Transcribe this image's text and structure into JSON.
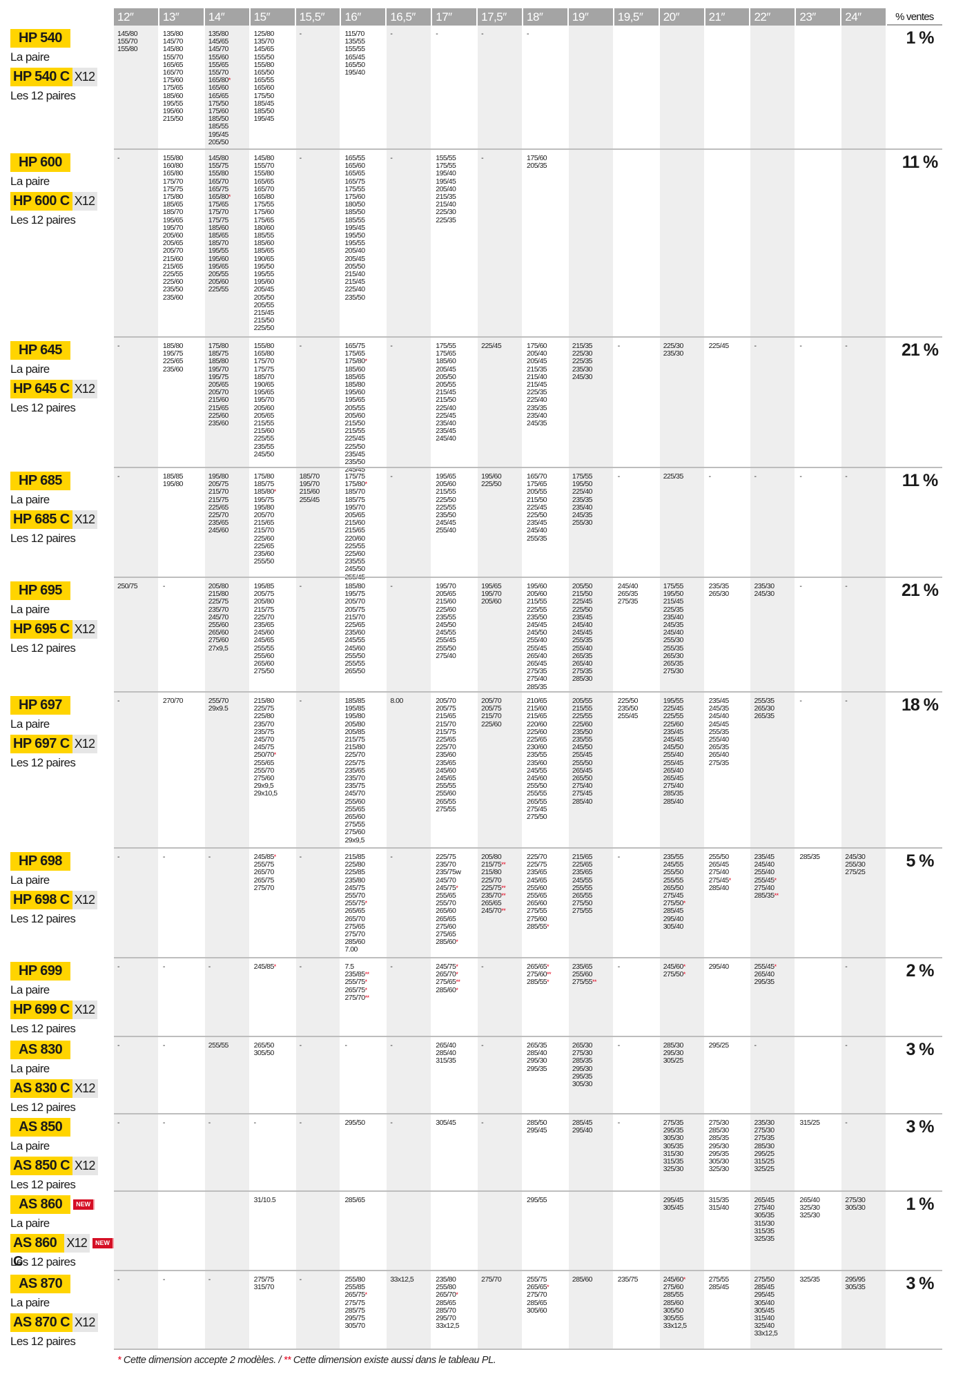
{
  "columns": [
    "12″",
    "13″",
    "14″",
    "15″",
    "15,5″",
    "16″",
    "16,5″",
    "17″",
    "17,5″",
    "18″",
    "19″",
    "19,5″",
    "20″",
    "21″",
    "22″",
    "23″",
    "24″"
  ],
  "pct_header": "% ventes",
  "colors": {
    "model_bg": "#ffd400",
    "header_bg": "#a4a4a4",
    "alt_col": "#eeeeee",
    "star": "#e3001b",
    "new_badge": "#d50f25"
  },
  "rows": [
    {
      "model": "HP 540",
      "pair": "La paire",
      "model_c": "HP 540 C",
      "x12": "X12",
      "dozen": "Les 12 paires",
      "pct": "1 %",
      "new": "",
      "cells": [
        "145/80 155/70 155/80",
        "135/80 145/70 145/80 155/70 165/65 165/70 175/60 175/65 185/60 195/55 195/60 215/50",
        "135/80 145/65 145/70 155/60 155/65 155/70 165/80* 165/60 165/65 175/50 175/60 185/50 185/55 195/45 205/50",
        "125/80 135/70 145/65 155/50 155/80 165/50 165/55 165/60 175/50 185/45 185/50 195/45",
        "-",
        "115/70 135/55 155/55 165/45 165/50 195/40",
        "-",
        "-",
        "-",
        "-",
        "",
        "",
        "",
        "",
        "",
        "",
        ""
      ]
    },
    {
      "model": "HP 600",
      "pair": "La paire",
      "model_c": "HP 600 C",
      "x12": "X12",
      "dozen": "Les 12 paires",
      "pct": "11 %",
      "new": "",
      "cells": [
        "-",
        "155/80 160/80 165/80 175/70 175/75 175/80 185/65 185/70 195/65 195/70 205/60 205/65 205/70 215/60 215/65 225/55 225/60 235/50 235/60",
        "145/80 155/75 155/80 165/70 165/75 165/80* 175/65 175/70 175/75 185/60 185/65 185/70 195/55 195/60 195/65 205/55 205/60 225/55",
        "145/80 155/70 155/80 165/65 165/70 165/80 175/55 175/60 175/65 180/60 185/55 185/60 185/65 190/65 195/50 195/55 195/60 205/45 205/50 205/55 215/45 215/50 225/50",
        "-",
        "165/55 165/60 165/65 165/75 175/55 175/60 180/50 185/50 185/55 195/45 195/50 195/55 205/40 205/45 205/50 215/40 215/45 225/40 235/50",
        "-",
        "155/55 175/55 195/40 195/45 205/40 215/35 215/40 225/30 225/35",
        "-",
        "175/60 205/35",
        "",
        "",
        "",
        "",
        "",
        "",
        ""
      ]
    },
    {
      "model": "HP 645",
      "pair": "La paire",
      "model_c": "HP 645 C",
      "x12": "X12",
      "dozen": "Les 12 paires",
      "pct": "21 %",
      "new": "",
      "cells": [
        "-",
        "185/80 195/75 225/65 235/60",
        "175/80 185/75 185/80 195/70 195/75 205/65 205/70 215/60 215/65 225/60 235/60",
        "155/80 165/80 175/70 175/75 185/70 190/65 195/65 195/70 205/60 205/65 215/55 215/60 225/55 235/55 245/50",
        "-",
        "165/75 175/65 175/80* 185/60 185/65 185/80 195/60 195/65 205/55 205/60 215/50 215/55 225/45 225/50 235/45 235/50 245/45",
        "-",
        "175/55 175/65 185/60 205/45 205/50 205/55 215/45 215/50 225/40 225/45 235/40 235/45 245/40",
        "225/45",
        "175/60 205/40 205/45 215/35 215/40 215/45 225/35 225/40 235/35 235/40 245/35",
        "215/35 225/30 225/35 235/30 245/30",
        "-",
        "225/30 235/30",
        "225/45",
        "-",
        "-",
        "-"
      ]
    },
    {
      "model": "HP 685",
      "pair": "La paire",
      "model_c": "HP 685 C",
      "x12": "X12",
      "dozen": "Les 12 paires",
      "pct": "11 %",
      "new": "",
      "cells": [
        "-",
        "185/85 195/80",
        "195/80 205/75 215/70 215/75 225/65 225/70 235/65 245/60",
        "175/80 185/75 185/80* 195/75 195/80 205/70 215/65 215/70 225/60 225/65 235/60 255/50",
        "185/70 195/70 215/60 255/45",
        "175/75 175/80* 185/70 185/75 195/70 205/65 215/60 215/65 220/60 225/55 225/60 235/55 245/50 255/45",
        "-",
        "195/65 205/60 215/55 225/50 225/55 235/50 245/45 255/40",
        "195/60 225/50",
        "165/70 175/65 205/55 215/50 225/45 225/50 235/45 245/40 255/35",
        "175/55 195/50 225/40 235/35 235/40 245/35 255/30",
        "-",
        "225/35",
        "-",
        "-",
        "-",
        "-"
      ]
    },
    {
      "model": "HP 695",
      "pair": "La paire",
      "model_c": "HP 695 C",
      "x12": "X12",
      "dozen": "Les 12 paires",
      "pct": "21 %",
      "new": "",
      "cells": [
        "250/75",
        "-",
        "205/80 215/80 225/75 235/70 245/70 255/60 265/60 275/60 27x9,5",
        "195/85 205/75 205/80 215/75 225/70 235/65 245/60 245/65 255/55 255/60 265/60 275/50",
        "-",
        "185/80 195/75 205/70 205/75 215/70 225/65 235/60 245/55 245/60 255/50 255/55 265/50",
        "-",
        "195/70 205/65 215/60 225/60 235/55 245/50 245/55 255/45 255/50 275/40",
        "195/65 195/70 205/60",
        "195/60 205/60 215/55 225/55 235/50 245/45 245/50 255/40 255/45 265/40 265/45 275/35 275/40 285/35",
        "205/50 215/50 225/45 225/50 235/45 245/40 245/45 255/35 255/40 265/35 265/40 275/35 285/30",
        "245/40 265/35 275/35",
        "175/55 195/50 215/45 225/35 235/40 245/35 245/40 255/30 255/35 265/30 265/35 275/30",
        "235/35 265/30",
        "235/30 245/30",
        "-",
        "-"
      ]
    },
    {
      "model": "HP 697",
      "pair": "La paire",
      "model_c": "HP 697 C",
      "x12": "X12",
      "dozen": "Les 12 paires",
      "pct": "18 %",
      "new": "",
      "cells": [
        "-",
        "270/70",
        "255/70 29x9.5",
        "215/80 225/75 225/80 235/70 235/75 245/70 245/75 250/70* 255/65 255/70 275/60 29x9,5 29x10,5",
        "-",
        "185/85 195/85 195/80 205/80 205/85 215/75 215/80 225/70 225/75 235/65 235/70 235/75 245/70 255/60 255/65 265/60 275/55 275/60 29x9,5",
        "8.00",
        "205/70 205/75 215/65 215/70 215/75 225/65 225/70 235/60 235/65 245/60 245/65 255/55 255/60 265/55 275/55",
        "205/70 205/75 215/70 225/60",
        "210/65 215/60 215/65 220/60 225/60 225/65 230/60 235/55 235/60 245/55 245/60 255/50 255/55 265/55 275/45 275/50",
        "205/55 215/55 225/55 225/60 235/50 235/55 245/50 255/45 255/50 265/45 265/50 275/40 275/45 285/40",
        "225/50 235/50 255/45",
        "195/55 225/45 225/55 225/60 235/45 245/45 245/50 255/40 255/45 265/40 265/45 275/40 285/35 285/40",
        "235/45 245/35 245/40 245/45 255/35 255/40 265/35 265/40 275/35",
        "255/35 265/30 265/35",
        "-",
        "-"
      ]
    },
    {
      "model": "HP 698",
      "pair": "La paire",
      "model_c": "HP 698 C",
      "x12": "X12",
      "dozen": "Les 12 paires",
      "pct": "5 %",
      "new": "",
      "cells": [
        "-",
        "-",
        "-",
        "245/85* 255/75 265/70 265/75 275/70",
        "-",
        "215/85 225/80 225/85 235/80 245/75 255/70 255/75* 265/65 265/70 275/65 275/70 285/60 7.00",
        "-",
        "225/75 235/70 235/75w 245/70 245/75* 255/65 255/70 265/60 265/65 275/60 275/65 285/60*",
        "205/80 215/75** 215/80 225/70 225/75** 235/70** 265/65 245/70**",
        "225/70 225/75 235/65 245/65 255/60 255/65 265/60 275/55 275/60 285/55*",
        "215/65 225/65 235/65 245/55 255/55 265/55 275/50 275/55",
        "-",
        "235/55 245/55 255/50 255/55 265/50 275/45 275/50* 285/45 295/40 305/40",
        "255/50 265/45 275/40 275/45* 285/40",
        "235/45 245/40 255/40 255/45* 275/40 285/35**",
        "285/35",
        "245/30 255/30 275/25"
      ]
    },
    {
      "model": "HP 699",
      "pair": "La paire",
      "model_c": "HP 699 C",
      "x12": "X12",
      "dozen": "Les 12 paires",
      "pct": "2 %",
      "new": "",
      "cells": [
        "-",
        "-",
        "-",
        "245/85*",
        "-",
        "7.5 235/85** 255/75* 265/75* 275/70**",
        "-",
        "245/75* 265/70* 275/65** 285/60*",
        "-",
        "265/65* 275/60** 285/55*",
        "235/65 255/60 275/55**",
        "-",
        "245/60* 275/50*",
        "295/40",
        "255/45* 265/40 295/35",
        "",
        "-"
      ]
    },
    {
      "model": "AS 830",
      "pair": "La paire",
      "model_c": "AS 830 C",
      "x12": "X12",
      "dozen": "Les 12 paires",
      "pct": "3 %",
      "new": "",
      "cells": [
        "-",
        "-",
        "255/55",
        "265/50 305/50",
        "-",
        "-",
        "-",
        "265/40 285/40 315/35",
        "-",
        "265/35 285/40 295/30 295/35",
        "265/30 275/30 285/35 295/30 295/35 305/30",
        "-",
        "285/30 295/30 305/25",
        "295/25",
        "-",
        "",
        "-"
      ]
    },
    {
      "model": "AS 850",
      "pair": "La paire",
      "model_c": "AS 850 C",
      "x12": "X12",
      "dozen": "Les 12 paires",
      "pct": "3 %",
      "new": "",
      "cells": [
        "-",
        "-",
        "-",
        "-",
        "-",
        "295/50",
        "-",
        "305/45",
        "-",
        "285/50 295/45",
        "285/45 295/40",
        "-",
        "275/35 295/35 305/30 305/35 315/30 315/35 325/30",
        "275/30 285/30 285/35 295/30 295/35 305/30 325/30",
        "235/30 275/30 275/35 285/30 295/25 315/25 325/25",
        "315/25",
        "-"
      ]
    },
    {
      "model": "AS 860",
      "pair": "La paire",
      "model_c": "AS 860 C",
      "x12": "X12",
      "dozen": "Les 12 paires",
      "pct": "1 %",
      "new": "NEW",
      "cells": [
        "",
        "",
        "",
        "31/10.5",
        "",
        "285/65",
        "",
        "",
        "",
        "295/55",
        "",
        "",
        "295/45 305/45",
        "315/35 315/40",
        "265/45 275/40 305/35 315/30 315/35 325/35",
        "265/40 325/30 325/30",
        "275/30 305/30"
      ]
    },
    {
      "model": "AS 870",
      "pair": "La paire",
      "model_c": "AS 870 C",
      "x12": "X12",
      "dozen": "Les 12 paires",
      "pct": "3 %",
      "new": "",
      "cells": [
        "-",
        "-",
        "-",
        "275/75 315/70",
        "-",
        "255/80 255/85 265/75* 275/75 285/75 295/75 305/70",
        "33x12,5",
        "235/80 255/80 265/70* 285/65 285/70 295/70 33x12,5",
        "275/70",
        "255/75 265/65* 275/70 285/65 305/60",
        "285/60",
        "235/75",
        "245/60* 275/60 285/55 285/60 305/50 305/55 33x12,5",
        "275/55 285/45",
        "275/50 285/45 295/45 305/40 305/45 315/40 325/40 33x12,5",
        "325/35",
        "295/95 305/35"
      ]
    }
  ],
  "footer": {
    "star1": "*",
    "text1": " Cette dimension accepte 2 modèles.  / ",
    "star2": "**",
    "text2": " Cette dimension existe aussi dans le tableau PL."
  }
}
